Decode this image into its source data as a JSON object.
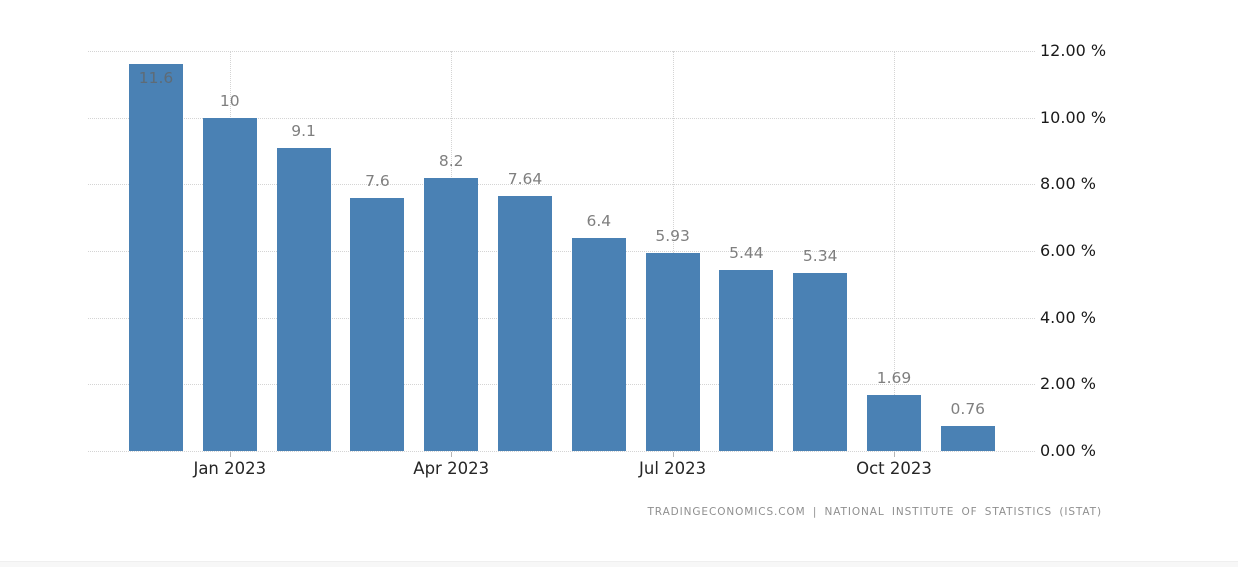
{
  "chart_data": {
    "type": "bar",
    "title": "",
    "unit": "%",
    "values": [
      11.6,
      10,
      9.1,
      7.6,
      8.2,
      7.64,
      6.4,
      5.93,
      5.44,
      5.34,
      1.69,
      0.76
    ],
    "value_labels": [
      "11.6",
      "10",
      "9.1",
      "7.6",
      "8.2",
      "7.64",
      "6.4",
      "5.93",
      "5.44",
      "5.34",
      "1.69",
      "0.76"
    ],
    "first_label_inside_bar": true,
    "x_ticks": [
      {
        "bar_index": 1,
        "label": "Jan 2023"
      },
      {
        "bar_index": 4,
        "label": "Apr 2023"
      },
      {
        "bar_index": 7,
        "label": "Jul 2023"
      },
      {
        "bar_index": 10,
        "label": "Oct 2023"
      }
    ],
    "y_ticks": [
      {
        "value": 12,
        "label": "12.00 %"
      },
      {
        "value": 10,
        "label": "10.00 %"
      },
      {
        "value": 8,
        "label": "8.00 %"
      },
      {
        "value": 6,
        "label": "6.00 %"
      },
      {
        "value": 4,
        "label": "4.00 %"
      },
      {
        "value": 2,
        "label": "2.00 %"
      },
      {
        "value": 0,
        "label": "0.00 %"
      }
    ],
    "ylim": [
      0,
      12
    ],
    "grid": true,
    "y_axis_position": "right",
    "legend": null,
    "colors": {
      "bar": "#4a81b4",
      "gridline": "#d4d4d4",
      "value_label": "#7f7f7f",
      "value_label_inside": "#5e6b76",
      "axis_label": "#1a1a1a",
      "x_label": "#262626",
      "attribution": "#8f8f8f"
    }
  },
  "footer": {
    "attribution": "TRADINGECONOMICS.COM | NATIONAL INSTITUTE OF STATISTICS (ISTAT)"
  }
}
